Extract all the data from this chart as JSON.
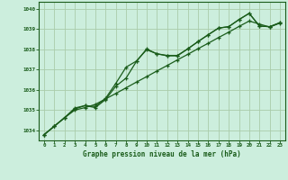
{
  "title": "Graphe pression niveau de la mer (hPa)",
  "background_color": "#cceedd",
  "grid_color": "#aaccaa",
  "line_color": "#1a5c1a",
  "border_color": "#1a5c1a",
  "x_ticks": [
    0,
    1,
    2,
    3,
    4,
    5,
    6,
    7,
    8,
    9,
    10,
    11,
    12,
    13,
    14,
    15,
    16,
    17,
    18,
    19,
    20,
    21,
    22,
    23
  ],
  "y_ticks": [
    1034,
    1035,
    1036,
    1037,
    1038,
    1039,
    1040
  ],
  "ylim": [
    1033.5,
    1040.35
  ],
  "xlim": [
    -0.5,
    23.5
  ],
  "series": [
    [
      1033.78,
      1034.2,
      1034.62,
      1035.0,
      1035.12,
      1035.28,
      1035.55,
      1035.82,
      1036.1,
      1036.38,
      1036.65,
      1036.93,
      1037.2,
      1037.48,
      1037.75,
      1038.03,
      1038.3,
      1038.58,
      1038.85,
      1039.13,
      1039.4,
      1039.25,
      1039.1,
      1039.3
    ],
    [
      1033.78,
      1034.2,
      1034.62,
      1035.05,
      1035.22,
      1035.12,
      1035.52,
      1036.18,
      1036.58,
      1037.4,
      1038.02,
      1037.78,
      1037.7,
      1037.7,
      1038.02,
      1038.38,
      1038.72,
      1039.05,
      1039.12,
      1039.47,
      1039.78,
      1039.15,
      1039.12,
      1039.32
    ],
    [
      1033.78,
      1034.2,
      1034.62,
      1035.1,
      1035.22,
      1035.18,
      1035.58,
      1036.32,
      1037.12,
      1037.42,
      1037.98,
      1037.78,
      1037.68,
      1037.68,
      1038.02,
      1038.38,
      1038.72,
      1039.05,
      1039.12,
      1039.47,
      1039.78,
      1039.15,
      1039.12,
      1039.32
    ]
  ]
}
